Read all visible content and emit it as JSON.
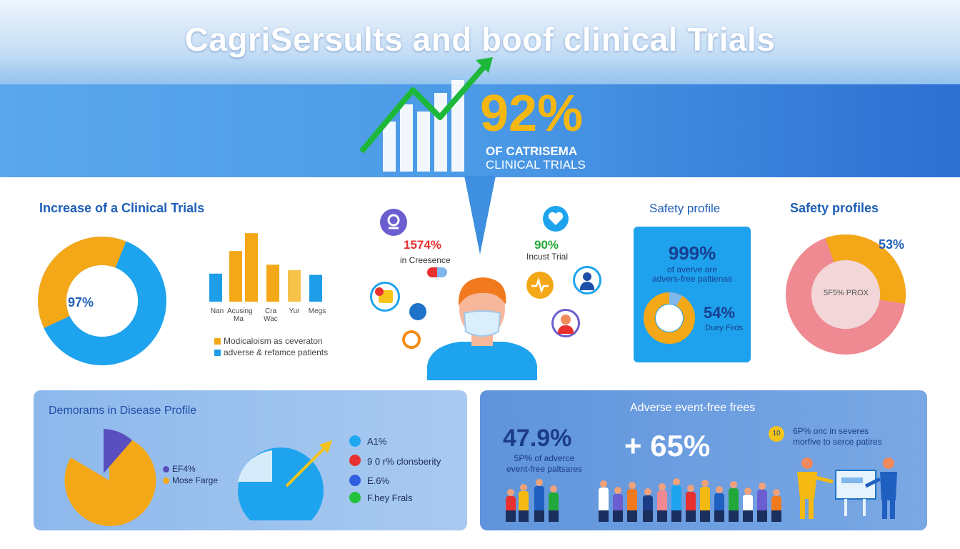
{
  "header": {
    "title": "CagriSersults and boof clinical Trials",
    "hero_value": "92%",
    "hero_caption_1": "OF CATRISEMA",
    "hero_caption_2": "CLINICAL TRIALS",
    "colors": {
      "accent_green": "#1db83a",
      "accent_gold": "#f5b712",
      "brand_blue": "#2d6fd2"
    }
  },
  "increase_section": {
    "title": "Increase of a Clinical Trials",
    "donut_label": "97%",
    "bar_ticks": [
      "Nan",
      "Acusing Ma",
      "Cra Wac",
      "Yur",
      "Megs"
    ],
    "legend": [
      {
        "label": "Modicaloism as ceveraton",
        "color": "#f4a818"
      },
      {
        "label": "adverse & refamce patients",
        "color": "#1e9ee9"
      }
    ]
  },
  "chart_data": [
    {
      "type": "pie",
      "title": "",
      "labels": [
        "",
        ""
      ],
      "values": [
        38,
        62
      ],
      "center_label": "97%"
    },
    {
      "type": "bar",
      "title": "",
      "categories": [
        "Nan",
        "Acusing Ma",
        "Cra Wac",
        "Yur",
        "Megs"
      ],
      "series": [
        {
          "name": "Modicaloism as ceveraton",
          "values": [
            0,
            85,
            0,
            53,
            0
          ]
        },
        {
          "name": "",
          "values": [
            0,
            115,
            0,
            0,
            0
          ]
        },
        {
          "name": "adverse & refamce patients",
          "values": [
            47,
            0,
            62,
            0,
            45
          ]
        }
      ],
      "ylim": [
        0,
        120
      ]
    },
    {
      "type": "pie",
      "title": "Safety profiles",
      "labels": [
        "53%",
        "5F5% PROX"
      ],
      "values": [
        33,
        67
      ]
    }
  ],
  "center": {
    "stat_left_value": "1574%",
    "stat_left_sub": "in Creesence",
    "stat_right_value": "90%",
    "stat_right_sub": "Incust Trial",
    "icons": [
      "pin-icon",
      "heart-icon",
      "pill-icon",
      "globe-icon",
      "doctor-icon",
      "pulse-icon",
      "user-avatar-icon",
      "orange-badge-icon"
    ]
  },
  "safety_profile": {
    "title": "Safety profile",
    "big_value": "999%",
    "sub_1": "of averve are",
    "sub_2": "advers-free paltienas",
    "donut_value": "54%",
    "donut_label": "Duey Firds"
  },
  "safety_profiles": {
    "title": "Safety profiles",
    "value": "53%",
    "center_label": "5F5% PROX"
  },
  "demographics": {
    "title": "Demorams in Disease Profile",
    "pie_legend": [
      {
        "label": "EF4%",
        "color": "#5a4fbf"
      },
      {
        "label": "Mose Farge",
        "color": "#f4a818"
      }
    ],
    "dots": [
      {
        "label": "A1%",
        "color": "#1fa8ef"
      },
      {
        "label": "9 0 r% clonsberity",
        "color": "#e8312f"
      },
      {
        "label": "E.6%",
        "color": "#2f5ee0"
      },
      {
        "label": "F.hey Frals",
        "color": "#22c23a"
      }
    ]
  },
  "adverse": {
    "title": "Adverse event-free frees",
    "big_value": "47.9%",
    "sub_1": "5P% of adverce",
    "sub_2": "event-free paltsares",
    "plus_value": "+ 65%",
    "badge": "10",
    "note_1": "6P% onc in severes",
    "note_2": "morfive to serce patires"
  }
}
